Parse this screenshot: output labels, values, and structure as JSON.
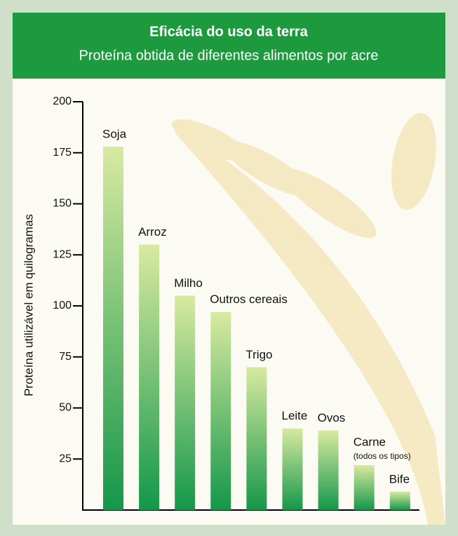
{
  "chart_data": {
    "type": "bar",
    "title": "Eficácia do uso da terra",
    "subtitle": "Proteína obtida de diferentes alimentos por acre",
    "y_label": "Proteína utilizável em quilogramas",
    "categories": [
      "Soja",
      "Arroz",
      "Milho",
      "Outros cereais",
      "Trigo",
      "Leite",
      "Ovos",
      "Carne",
      "Bife"
    ],
    "values": [
      178,
      130,
      105,
      97,
      70,
      40,
      39,
      22,
      9
    ],
    "annotations": [
      {
        "text": "(todos os tipos)",
        "category": "Carne"
      }
    ],
    "color_top": "#d8eaa0",
    "color_bottom": "#14974a",
    "ylim": [
      0,
      200
    ],
    "yticks": [
      25,
      50,
      75,
      100,
      125,
      150,
      175,
      200
    ]
  }
}
